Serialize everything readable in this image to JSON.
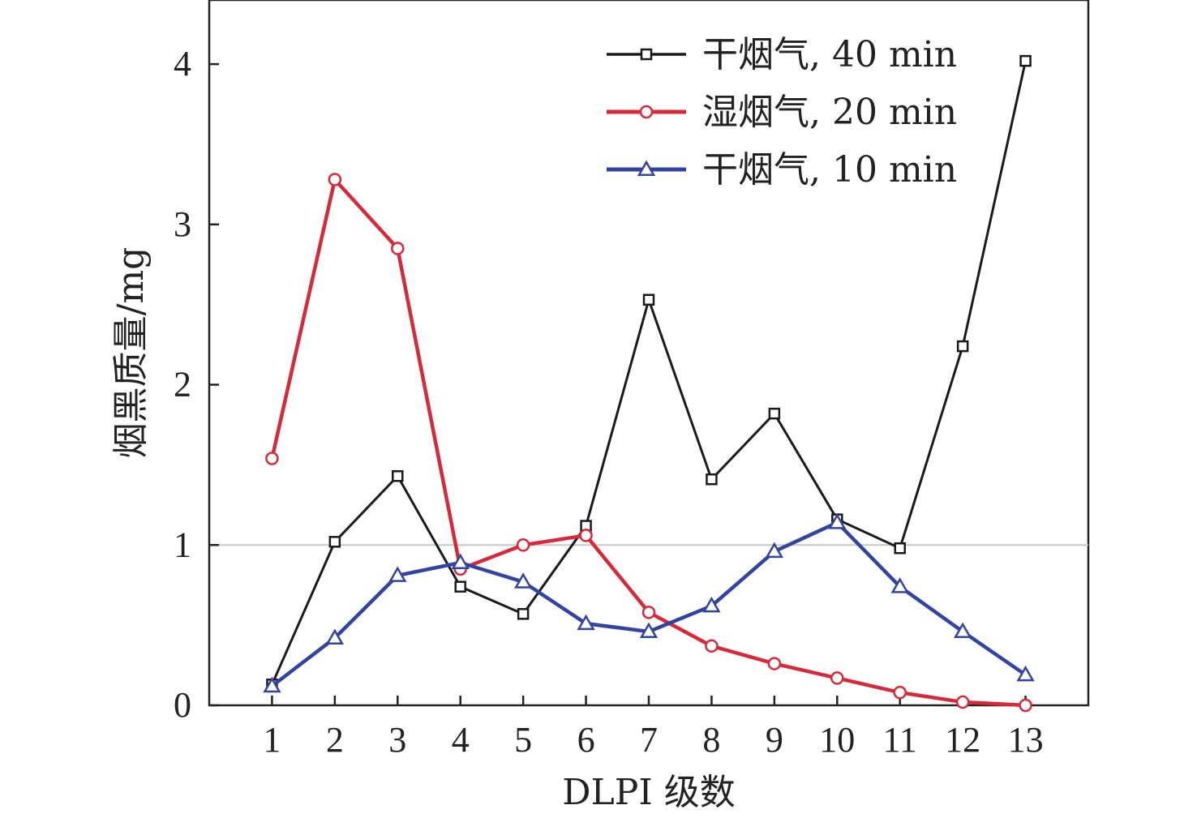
{
  "chart_data": {
    "type": "line",
    "xlabel": "DLPI 级数",
    "ylabel": "烟黑质量/mg",
    "x": [
      1,
      2,
      3,
      4,
      5,
      6,
      7,
      8,
      9,
      10,
      11,
      12,
      13
    ],
    "x_ticks": [
      "1",
      "2",
      "3",
      "4",
      "5",
      "6",
      "7",
      "8",
      "9",
      "10",
      "11",
      "12",
      "13"
    ],
    "y_ticks": [
      "0",
      "1",
      "2",
      "3",
      "4"
    ],
    "xlim": [
      0.0,
      14.0
    ],
    "ylim": [
      0,
      4.4
    ],
    "reference_line_y": 1.0,
    "legend_position": "top-right",
    "series": [
      {
        "name": "干烟气, 40 min",
        "marker": "square",
        "color": "#1a1a1a",
        "values": [
          0.13,
          1.02,
          1.43,
          0.74,
          0.57,
          1.12,
          2.53,
          1.41,
          1.82,
          1.16,
          0.98,
          2.24,
          4.02
        ]
      },
      {
        "name": "湿烟气, 20 min",
        "marker": "circle",
        "color": "#d8283a",
        "values": [
          1.54,
          3.28,
          2.85,
          0.85,
          1.0,
          1.06,
          0.58,
          0.37,
          0.26,
          0.17,
          0.08,
          0.02,
          0.0
        ]
      },
      {
        "name": "干烟气, 10 min",
        "marker": "triangle",
        "color": "#3243a0",
        "values": [
          0.12,
          0.42,
          0.81,
          0.89,
          0.77,
          0.51,
          0.46,
          0.62,
          0.96,
          1.14,
          0.74,
          0.46,
          0.19
        ]
      }
    ]
  }
}
